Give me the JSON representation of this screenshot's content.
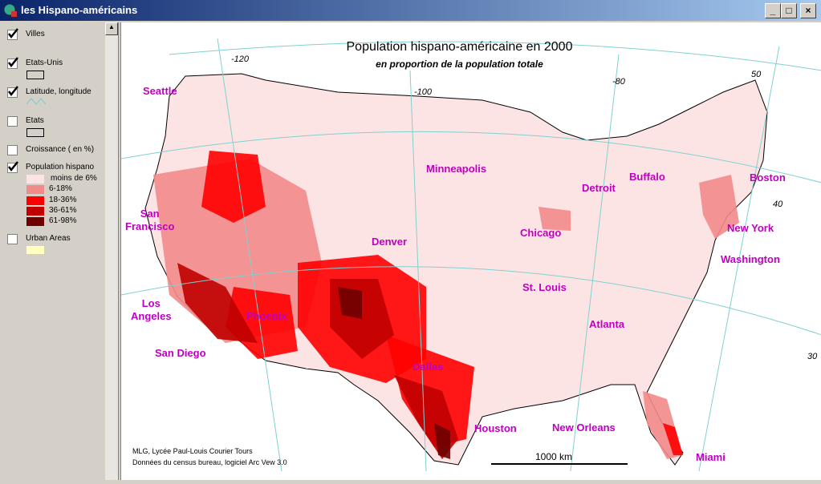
{
  "window": {
    "title": "les Hispano-américains"
  },
  "legend": {
    "layers": [
      {
        "name": "Villes",
        "checked": true
      },
      {
        "name": "Etats-Unis",
        "checked": true
      },
      {
        "name": "Latitude, longitude",
        "checked": true
      },
      {
        "name": "Etats",
        "checked": false
      },
      {
        "name": "Croissance ( en %)",
        "checked": false
      },
      {
        "name": "Population hispano",
        "checked": true
      },
      {
        "name": "Urban Areas",
        "checked": false
      }
    ],
    "classes": [
      {
        "label": "moins de 6%",
        "color": "#fde4e4"
      },
      {
        "label": "6-18%",
        "color": "#f28a8a"
      },
      {
        "label": "18-36%",
        "color": "#ff0000"
      },
      {
        "label": "36-61%",
        "color": "#c00000"
      },
      {
        "label": "61-98%",
        "color": "#6e0000"
      }
    ]
  },
  "map": {
    "title": "Population hispano-américaine en 2000",
    "subtitle": "en proportion de la population totale",
    "graticule_labels": [
      "-120",
      "-100",
      "-80",
      "50",
      "40",
      "30"
    ],
    "cities": [
      "Seattle",
      "Minneapolis",
      "Buffalo",
      "Boston",
      "Detroit",
      "San\nFrancisco",
      "New York",
      "Chicago",
      "Denver",
      "Washington",
      "St. Louis",
      "Los\nAngeles",
      "Phoenix",
      "Atlanta",
      "San Diego",
      "Dallas",
      "Houston",
      "New Orleans",
      "Miami"
    ],
    "credits": [
      "MLG, Lycée Paul-Louis Courier Tours",
      "Données du census bureau, logiciel Arc Vew 3.0"
    ],
    "scale_bar": "1000 km"
  }
}
